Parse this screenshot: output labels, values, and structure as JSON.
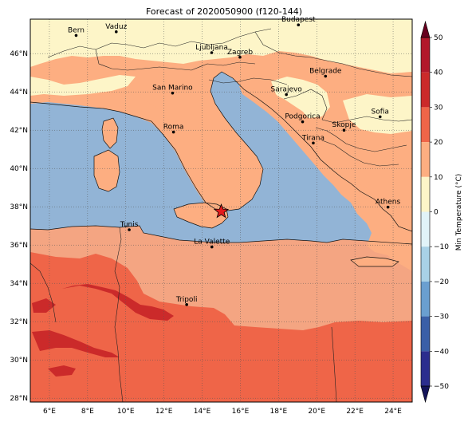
{
  "title": "Forecast of 2020050900 (f120-144)",
  "colorbar": {
    "label": "Min Temperature (°C)",
    "ticks": [
      "50",
      "40",
      "30",
      "20",
      "10",
      "0",
      "−10",
      "−20",
      "−30",
      "−40",
      "−50"
    ],
    "values": [
      50,
      40,
      30,
      20,
      10,
      0,
      -10,
      -20,
      -30,
      -40,
      -50
    ],
    "range": [
      -50,
      50
    ],
    "colors": {
      "40_50": "#b2182b",
      "30_40": "#cb2a2a",
      "20_30": "#ef6548",
      "10_20": "#fdae81",
      "0_10": "#fdf5c8",
      "m10_0": "#e1f3f8",
      "m20_m10": "#a8d1e6",
      "m30_m20": "#6a9fd0",
      "m40_m30": "#3a5fa7",
      "m50_m40": "#2b2d8e",
      "under": "#14145a",
      "over": "#67001f"
    }
  },
  "map": {
    "lon_range": [
      5,
      25
    ],
    "lat_range": [
      27.8,
      47.8
    ],
    "xticks": [
      "6°E",
      "8°E",
      "10°E",
      "12°E",
      "14°E",
      "16°E",
      "18°E",
      "20°E",
      "22°E",
      "24°E"
    ],
    "yticks": [
      "46°N",
      "44°N",
      "42°N",
      "40°N",
      "38°N",
      "36°N",
      "34°N",
      "32°N",
      "30°N",
      "28°N"
    ],
    "sea_color": "#92b4d6",
    "cities": [
      {
        "name": "Bern",
        "lon": 7.4,
        "lat": 46.95
      },
      {
        "name": "Vaduz",
        "lon": 9.5,
        "lat": 47.14
      },
      {
        "name": "Budapest",
        "lon": 19.04,
        "lat": 47.5
      },
      {
        "name": "Ljubljana",
        "lon": 14.5,
        "lat": 46.05
      },
      {
        "name": "Zagreb",
        "lon": 15.98,
        "lat": 45.81
      },
      {
        "name": "Belgrade",
        "lon": 20.46,
        "lat": 44.82
      },
      {
        "name": "San Marino",
        "lon": 12.45,
        "lat": 43.94
      },
      {
        "name": "Sarajevo",
        "lon": 18.41,
        "lat": 43.86
      },
      {
        "name": "Sofia",
        "lon": 23.32,
        "lat": 42.7
      },
      {
        "name": "Podgorica",
        "lon": 19.26,
        "lat": 42.44
      },
      {
        "name": "Skopje",
        "lon": 21.43,
        "lat": 42.0
      },
      {
        "name": "Roma",
        "lon": 12.5,
        "lat": 41.9
      },
      {
        "name": "Tirana",
        "lon": 19.82,
        "lat": 41.33
      },
      {
        "name": "Athens",
        "lon": 23.73,
        "lat": 37.98
      },
      {
        "name": "Tunis",
        "lon": 10.18,
        "lat": 36.8
      },
      {
        "name": "La Valette",
        "lon": 14.51,
        "lat": 35.9
      },
      {
        "name": "Tripoli",
        "lon": 13.19,
        "lat": 32.89
      }
    ],
    "marker": {
      "lon": 15.0,
      "lat": 37.75,
      "color": "#e41a1c"
    }
  }
}
